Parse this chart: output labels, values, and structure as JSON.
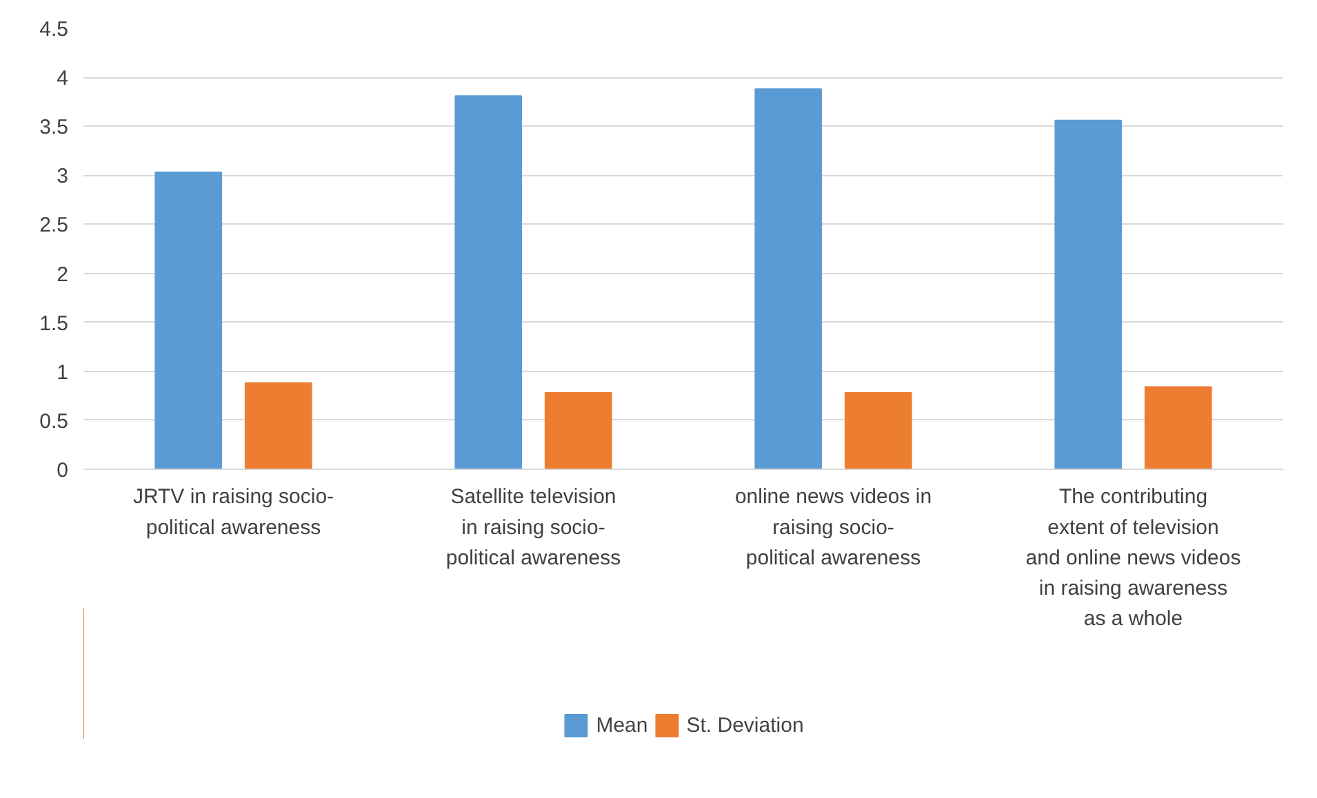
{
  "chart_data": {
    "type": "bar",
    "categories": [
      "JRTV in raising socio-political awareness",
      "Satellite television in raising socio-political awareness",
      "online news videos in raising socio-political awareness",
      "The contributing extent of television and online news videos in raising awareness as a whole"
    ],
    "series": [
      {
        "name": "Mean",
        "color": "#5b9bd5",
        "values": [
          3.03,
          3.81,
          3.88,
          3.56
        ]
      },
      {
        "name": "St. Deviation",
        "color": "#ed7d31",
        "values": [
          0.88,
          0.78,
          0.78,
          0.84
        ]
      }
    ],
    "ylim": [
      0,
      4.5
    ],
    "yticks": [
      0,
      0.5,
      1,
      1.5,
      2,
      2.5,
      3,
      3.5,
      4,
      4.5
    ],
    "grid": "y",
    "legend": "bottom"
  }
}
